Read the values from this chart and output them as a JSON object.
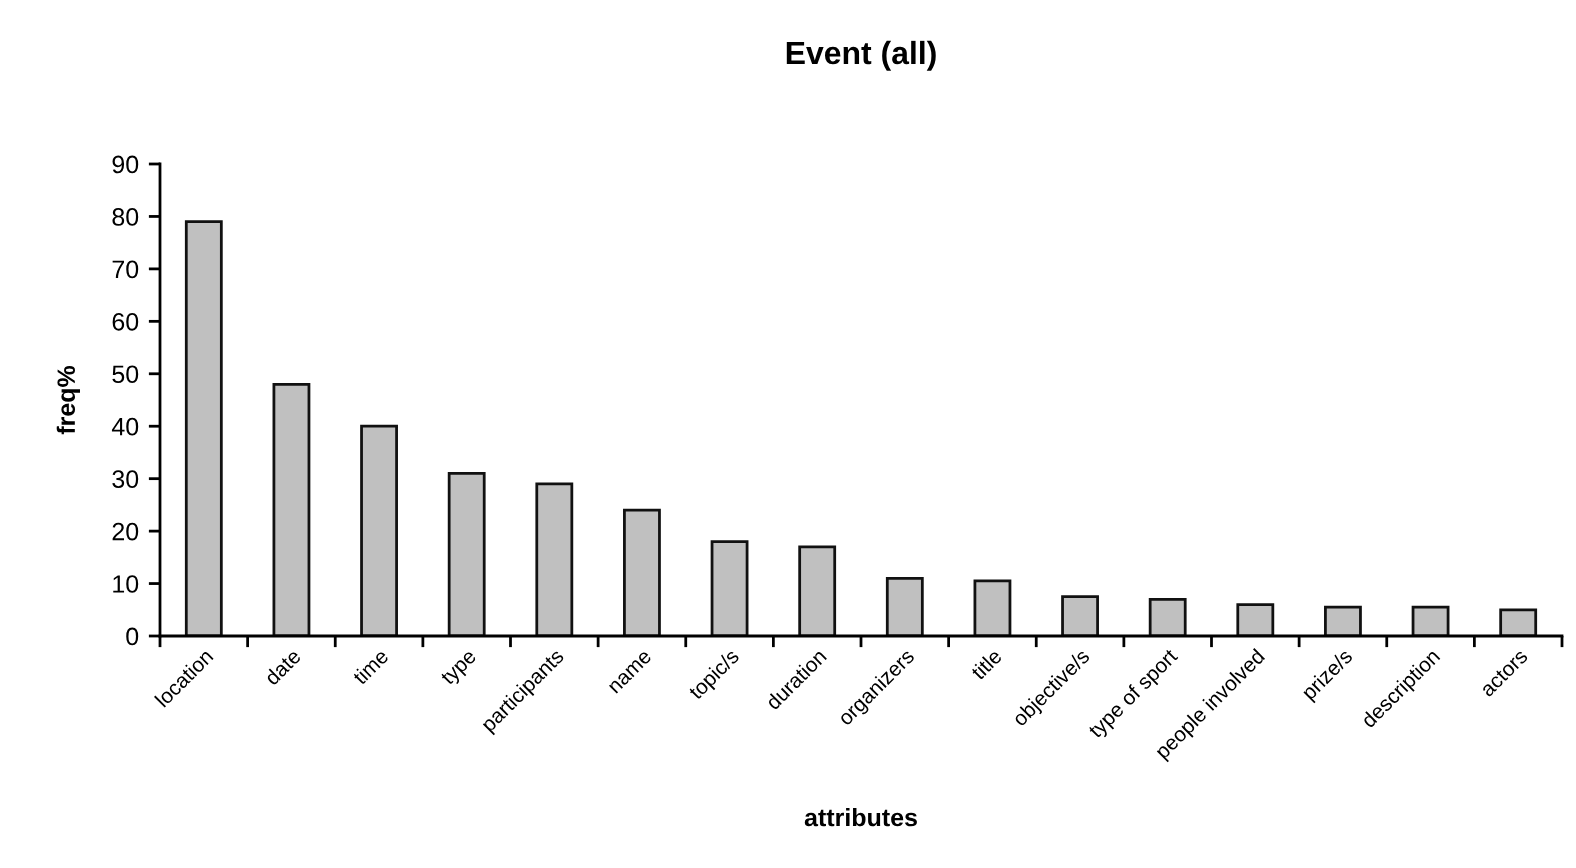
{
  "chart_data": {
    "type": "bar",
    "title": "Event (all)",
    "xlabel": "attributes",
    "ylabel": "freq%",
    "categories": [
      "location",
      "date",
      "time",
      "type",
      "participants",
      "name",
      "topic/s",
      "duration",
      "organizers",
      "title",
      "objective/s",
      "type of sport",
      "people involved",
      "prize/s",
      "description",
      "actors"
    ],
    "values": [
      79,
      48,
      40,
      31,
      29,
      24,
      18,
      17,
      11,
      10.5,
      7.5,
      7,
      6,
      5.5,
      5.5,
      5
    ],
    "color": "#c0c0c0",
    "ylim": [
      0,
      90
    ],
    "yticks": [
      0,
      10,
      20,
      30,
      40,
      50,
      60,
      70,
      80,
      90
    ]
  }
}
